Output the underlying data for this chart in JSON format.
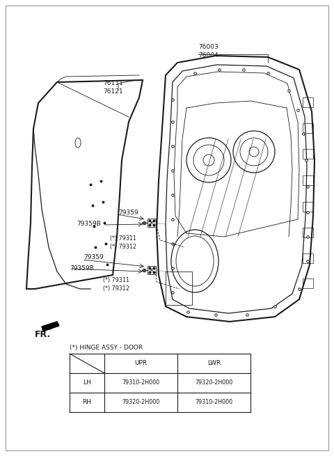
{
  "bg_color": "#ffffff",
  "border_color": "#aaaaaa",
  "line_color": "#1a1a1a",
  "label_color": "#1a1a1a",
  "fig_width": 4.8,
  "fig_height": 6.55,
  "dpi": 100,
  "table_title": "(*) HINGE ASSY - DOOR",
  "table_headers": [
    "",
    "UPR",
    "LWR"
  ],
  "table_rows": [
    [
      "LH",
      "79310-2H000",
      "79320-2H000"
    ],
    [
      "RH",
      "79320-2H000",
      "79310-2H000"
    ]
  ]
}
